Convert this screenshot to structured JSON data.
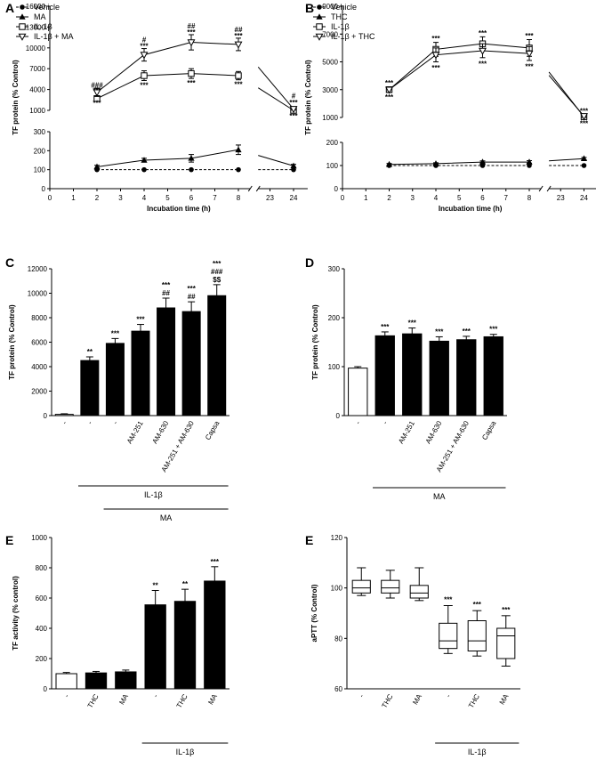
{
  "figure_label": "Figure",
  "chart_data": [
    {
      "id": "A",
      "panel": "A",
      "type": "line",
      "xlabel": "Incubation time (h)",
      "ylabel": "TF protein (% Control)",
      "x_ticks": [
        "0",
        "1",
        "2",
        "3",
        "4",
        "5",
        "6",
        "7",
        "8",
        "23",
        "24"
      ],
      "y_ticks_upper": [
        "1000",
        "4000",
        "7000",
        "10000",
        "13000",
        "16000"
      ],
      "y_ticks_lower": [
        "0",
        "100",
        "200",
        "300"
      ],
      "ylim_upper": [
        1000,
        16000
      ],
      "ylim_lower": [
        0,
        300
      ],
      "series": [
        {
          "name": "Vehicle",
          "marker": "circle",
          "dashed": true,
          "segment": "lower",
          "x": [
            2,
            4,
            6,
            8,
            24
          ],
          "y": [
            100,
            100,
            100,
            100,
            100
          ],
          "err": [
            0,
            0,
            0,
            0,
            0
          ]
        },
        {
          "name": "MA",
          "marker": "triangle",
          "dashed": false,
          "segment": "lower",
          "x": [
            2,
            4,
            6,
            8,
            24
          ],
          "y": [
            115,
            150,
            160,
            205,
            120
          ],
          "err": [
            8,
            10,
            20,
            25,
            8
          ]
        },
        {
          "name": "IL-1β",
          "marker": "square",
          "dashed": false,
          "segment": "upper",
          "x": [
            2,
            4,
            6,
            8,
            24
          ],
          "y": [
            2700,
            6000,
            6300,
            6000,
            1000
          ],
          "err": [
            400,
            700,
            700,
            600,
            100
          ]
        },
        {
          "name": "IL-1β + MA",
          "marker": "tri-down",
          "dashed": false,
          "segment": "upper",
          "x": [
            2,
            4,
            6,
            8,
            24
          ],
          "y": [
            3600,
            9000,
            10800,
            10500,
            1200
          ],
          "err": [
            600,
            900,
            1100,
            900,
            150
          ]
        }
      ],
      "annotations": [
        {
          "x": 2,
          "y": 3500,
          "text": "***",
          "pos": "above"
        },
        {
          "x": 2,
          "y": 4300,
          "text": "###",
          "pos": "above"
        },
        {
          "x": 2,
          "y": 2700,
          "text": "***",
          "pos": "below"
        },
        {
          "x": 4,
          "y": 9900,
          "text": "***",
          "pos": "above"
        },
        {
          "x": 4,
          "y": 10800,
          "text": "#",
          "pos": "above"
        },
        {
          "x": 4,
          "y": 5300,
          "text": "***",
          "pos": "below"
        },
        {
          "x": 6,
          "y": 11900,
          "text": "***",
          "pos": "above"
        },
        {
          "x": 6,
          "y": 12800,
          "text": "##",
          "pos": "above"
        },
        {
          "x": 6,
          "y": 5600,
          "text": "***",
          "pos": "below"
        },
        {
          "x": 8,
          "y": 11400,
          "text": "***",
          "pos": "above"
        },
        {
          "x": 8,
          "y": 12300,
          "text": "##",
          "pos": "above"
        },
        {
          "x": 8,
          "y": 5400,
          "text": "***",
          "pos": "below"
        },
        {
          "x": 24,
          "y": 1800,
          "text": "***",
          "pos": "above"
        },
        {
          "x": 24,
          "y": 2700,
          "text": "#",
          "pos": "above"
        },
        {
          "x": 24,
          "y": 900,
          "text": "***",
          "pos": "below"
        }
      ]
    },
    {
      "id": "B",
      "panel": "B",
      "type": "line",
      "xlabel": "Incubation time (h)",
      "ylabel": "TF protein (% Control)",
      "x_ticks": [
        "0",
        "1",
        "2",
        "3",
        "4",
        "5",
        "6",
        "7",
        "8",
        "23",
        "24"
      ],
      "y_ticks_upper": [
        "1000",
        "3000",
        "5000",
        "7000",
        "9000"
      ],
      "y_ticks_lower": [
        "0",
        "100",
        "200"
      ],
      "ylim_upper": [
        1000,
        9000
      ],
      "ylim_lower": [
        0,
        200
      ],
      "series": [
        {
          "name": "Vehicle",
          "marker": "circle",
          "dashed": true,
          "segment": "lower",
          "x": [
            2,
            4,
            6,
            8,
            24
          ],
          "y": [
            100,
            100,
            100,
            100,
            100
          ],
          "err": [
            0,
            0,
            0,
            0,
            0
          ]
        },
        {
          "name": "THC",
          "marker": "triangle",
          "dashed": false,
          "segment": "lower",
          "x": [
            2,
            4,
            6,
            8,
            24
          ],
          "y": [
            105,
            108,
            115,
            115,
            130
          ],
          "err": [
            4,
            4,
            5,
            6,
            5
          ]
        },
        {
          "name": "IL-1β",
          "marker": "square",
          "dashed": false,
          "segment": "upper",
          "x": [
            2,
            4,
            6,
            8,
            24
          ],
          "y": [
            3000,
            5900,
            6300,
            6000,
            1050
          ],
          "err": [
            200,
            500,
            500,
            600,
            100
          ]
        },
        {
          "name": "IL-1β + THC",
          "marker": "tri-down",
          "dashed": false,
          "segment": "upper",
          "x": [
            2,
            4,
            6,
            8,
            24
          ],
          "y": [
            3000,
            5500,
            5800,
            5600,
            1100
          ],
          "err": [
            200,
            500,
            500,
            500,
            100
          ]
        }
      ],
      "annotations": [
        {
          "x": 2,
          "y": 3300,
          "text": "***",
          "pos": "above"
        },
        {
          "x": 2,
          "y": 2800,
          "text": "***",
          "pos": "below"
        },
        {
          "x": 4,
          "y": 6500,
          "text": "***",
          "pos": "above"
        },
        {
          "x": 4,
          "y": 4900,
          "text": "***",
          "pos": "below"
        },
        {
          "x": 6,
          "y": 6900,
          "text": "***",
          "pos": "above"
        },
        {
          "x": 6,
          "y": 5200,
          "text": "***",
          "pos": "below"
        },
        {
          "x": 8,
          "y": 6700,
          "text": "***",
          "pos": "above"
        },
        {
          "x": 8,
          "y": 5000,
          "text": "***",
          "pos": "below"
        },
        {
          "x": 24,
          "y": 1300,
          "text": "***",
          "pos": "above"
        },
        {
          "x": 24,
          "y": 900,
          "text": "***",
          "pos": "below"
        }
      ]
    },
    {
      "id": "C",
      "panel": "C",
      "type": "bar",
      "ylabel": "TF protein (% Control)",
      "ylim": [
        0,
        12000
      ],
      "y_ticks": [
        "0",
        "2000",
        "4000",
        "6000",
        "8000",
        "10000",
        "12000"
      ],
      "categories": [
        "-",
        "-",
        "-",
        "AM-251",
        "AM-630",
        "AM-251 + AM-630",
        "Capsa"
      ],
      "values": [
        100,
        4500,
        5900,
        6900,
        8800,
        8500,
        9800
      ],
      "errors": [
        50,
        300,
        400,
        550,
        800,
        800,
        900
      ],
      "fill": [
        "white",
        "black",
        "black",
        "black",
        "black",
        "black",
        "black"
      ],
      "labels": [
        "",
        "**",
        "***",
        "***",
        "***\n##",
        "***\n##",
        "***\n###\n$$"
      ],
      "groups": [
        {
          "label": "IL-1β",
          "from": 1,
          "to": 6
        },
        {
          "label": "MA",
          "from": 2,
          "to": 6
        }
      ]
    },
    {
      "id": "D",
      "panel": "D",
      "type": "bar",
      "ylabel": "TF protein (% Control)",
      "ylim": [
        0,
        300
      ],
      "y_ticks": [
        "0",
        "100",
        "200",
        "300"
      ],
      "categories": [
        "-",
        "-",
        "AM-251",
        "AM-630",
        "AM-251 + AM-630",
        "Capsa"
      ],
      "values": [
        97,
        163,
        167,
        152,
        155,
        161
      ],
      "errors": [
        3,
        8,
        12,
        9,
        7,
        5
      ],
      "fill": [
        "white",
        "black",
        "black",
        "black",
        "black",
        "black"
      ],
      "labels": [
        "",
        "***",
        "***",
        "***",
        "***",
        "***"
      ],
      "groups": [
        {
          "label": "MA",
          "from": 1,
          "to": 5
        }
      ]
    },
    {
      "id": "E1",
      "panel": "E",
      "type": "bar",
      "ylabel": "TF activity (% control)",
      "ylim": [
        0,
        1000
      ],
      "y_ticks": [
        "0",
        "200",
        "400",
        "600",
        "800",
        "1000"
      ],
      "categories": [
        "-",
        "THC",
        "MA",
        "-",
        "THC",
        "MA"
      ],
      "values": [
        100,
        105,
        112,
        555,
        578,
        712
      ],
      "errors": [
        8,
        10,
        12,
        95,
        80,
        95
      ],
      "fill": [
        "white",
        "black",
        "black",
        "black",
        "black",
        "black"
      ],
      "labels": [
        "",
        "",
        "",
        "**",
        "**",
        "***"
      ],
      "groups": [
        {
          "label": "IL-1β",
          "from": 3,
          "to": 5
        }
      ]
    },
    {
      "id": "E2",
      "panel": "E",
      "type": "boxplot",
      "ylabel": "aPTT (% Control)",
      "ylim": [
        60,
        120
      ],
      "y_ticks": [
        "60",
        "80",
        "100",
        "120"
      ],
      "categories": [
        "-",
        "THC",
        "MA",
        "-",
        "THC",
        "MA"
      ],
      "boxes": [
        {
          "min": 97,
          "q1": 98,
          "median": 100,
          "q3": 103,
          "max": 108
        },
        {
          "min": 96,
          "q1": 98,
          "median": 100,
          "q3": 103,
          "max": 107
        },
        {
          "min": 95,
          "q1": 96,
          "median": 98,
          "q3": 101,
          "max": 108
        },
        {
          "min": 74,
          "q1": 76,
          "median": 79,
          "q3": 86,
          "max": 93
        },
        {
          "min": 73,
          "q1": 75,
          "median": 79,
          "q3": 87,
          "max": 91
        },
        {
          "min": 69,
          "q1": 72,
          "median": 81,
          "q3": 84,
          "max": 89
        }
      ],
      "labels": [
        "",
        "",
        "",
        "***",
        "***",
        "***"
      ],
      "groups": [
        {
          "label": "IL-1β",
          "from": 3,
          "to": 5
        }
      ]
    }
  ]
}
